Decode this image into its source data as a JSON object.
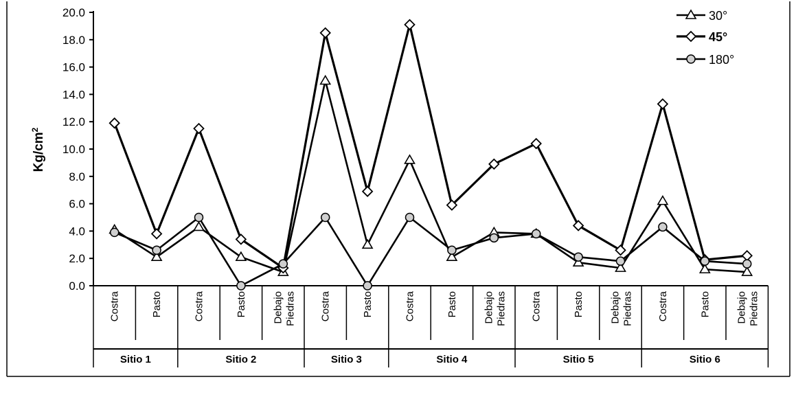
{
  "chart_data": {
    "type": "line",
    "title": "",
    "xlabel": "",
    "ylabel": "Kg/cm",
    "ylabel_sup": "2",
    "ylim": [
      0,
      20
    ],
    "yticks": [
      "0.0",
      "2.0",
      "4.0",
      "6.0",
      "8.0",
      "10.0",
      "12.0",
      "14.0",
      "16.0",
      "18.0",
      "20.0"
    ],
    "grid": false,
    "legend_position": "top-right",
    "categories": [
      [
        "Costra"
      ],
      [
        "Pasto"
      ],
      [
        "Costra"
      ],
      [
        "Pasto"
      ],
      [
        "Debajo",
        "Piedras"
      ],
      [
        "Costra"
      ],
      [
        "Pasto"
      ],
      [
        "Costra"
      ],
      [
        "Pasto"
      ],
      [
        "Debajo",
        "Piedras"
      ],
      [
        "Costra"
      ],
      [
        "Pasto"
      ],
      [
        "Debajo",
        "Piedras"
      ],
      [
        "Costra"
      ],
      [
        "Pasto"
      ],
      [
        "Debajo",
        "Piedras"
      ]
    ],
    "groups": [
      {
        "label": "Sitio 1",
        "start": 0,
        "end": 1
      },
      {
        "label": "Sitio 2",
        "start": 2,
        "end": 4
      },
      {
        "label": "Sitio 3",
        "start": 5,
        "end": 6
      },
      {
        "label": "Sitio 4",
        "start": 7,
        "end": 9
      },
      {
        "label": "Sitio 5",
        "start": 10,
        "end": 12
      },
      {
        "label": "Sitio 6",
        "start": 13,
        "end": 15
      }
    ],
    "series": [
      {
        "name": "30°",
        "marker": "triangle",
        "bold": false,
        "values": [
          4.1,
          2.1,
          4.3,
          2.1,
          1.0,
          15.0,
          3.0,
          9.2,
          2.1,
          3.9,
          3.8,
          1.7,
          1.3,
          6.2,
          1.2,
          1.0
        ]
      },
      {
        "name": "45°",
        "marker": "diamond",
        "bold": true,
        "values": [
          11.9,
          3.8,
          11.5,
          3.4,
          1.3,
          18.5,
          6.9,
          19.1,
          5.9,
          8.9,
          10.4,
          4.4,
          2.6,
          13.3,
          1.9,
          2.2
        ]
      },
      {
        "name": "180°",
        "marker": "circle",
        "bold": false,
        "values": [
          3.9,
          2.6,
          5.0,
          0.0,
          1.6,
          5.0,
          0.0,
          5.0,
          2.6,
          3.5,
          3.8,
          2.1,
          1.8,
          4.3,
          1.8,
          1.6
        ]
      }
    ]
  }
}
